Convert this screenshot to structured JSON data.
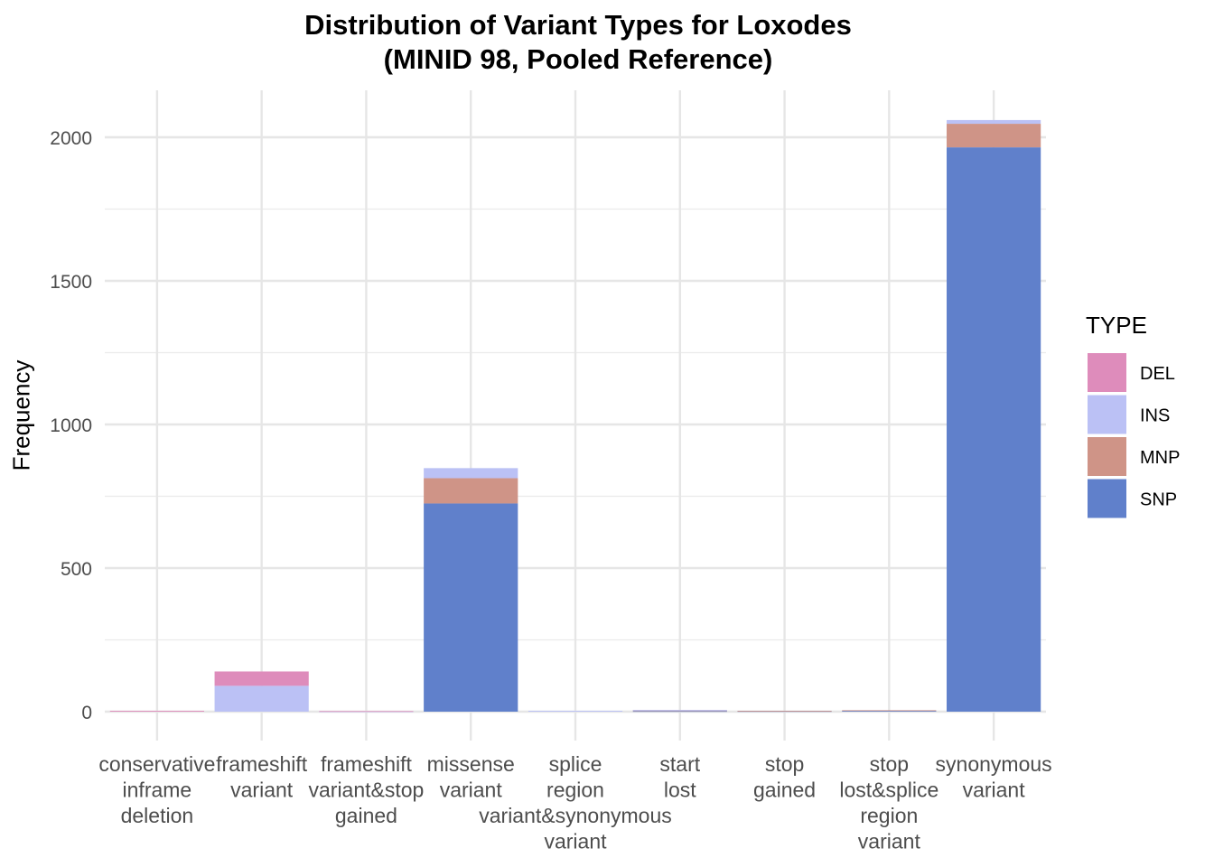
{
  "chart_data": {
    "type": "bar",
    "stacked": true,
    "title": "Distribution of Variant Types for Loxodes",
    "subtitle": "(MINID 98, Pooled Reference)",
    "xlabel": "",
    "ylabel": "Frequency",
    "ylim": [
      -90,
      2170
    ],
    "yticks": [
      0,
      500,
      1000,
      1500,
      2000
    ],
    "grid": true,
    "legend": {
      "title": "TYPE",
      "position": "right"
    },
    "categories": [
      [
        "conservative",
        "inframe",
        "deletion"
      ],
      [
        "frameshift",
        "variant"
      ],
      [
        "frameshift",
        "variant&stop",
        "gained"
      ],
      [
        "missense",
        "variant"
      ],
      [
        "splice",
        "region",
        "variant&synonymous",
        "variant"
      ],
      [
        "start",
        "lost"
      ],
      [
        "stop",
        "gained"
      ],
      [
        "stop",
        "lost&splice",
        "region",
        "variant"
      ],
      [
        "synonymous",
        "variant"
      ]
    ],
    "series": [
      {
        "name": "SNP",
        "color": "#6080CB",
        "values": [
          0,
          0,
          0,
          725,
          0,
          2,
          2,
          3,
          1965
        ]
      },
      {
        "name": "MNP",
        "color": "#CF9487",
        "values": [
          0,
          0,
          0,
          88,
          0,
          3,
          1,
          2,
          82
        ]
      },
      {
        "name": "INS",
        "color": "#BBC1F5",
        "values": [
          0,
          90,
          1,
          35,
          3,
          1,
          0,
          0,
          13
        ]
      },
      {
        "name": "DEL",
        "color": "#DE8CBB",
        "values": [
          3,
          50,
          1,
          0,
          0,
          0,
          0,
          0,
          0
        ]
      }
    ],
    "legend_order": [
      "DEL",
      "INS",
      "MNP",
      "SNP"
    ]
  }
}
